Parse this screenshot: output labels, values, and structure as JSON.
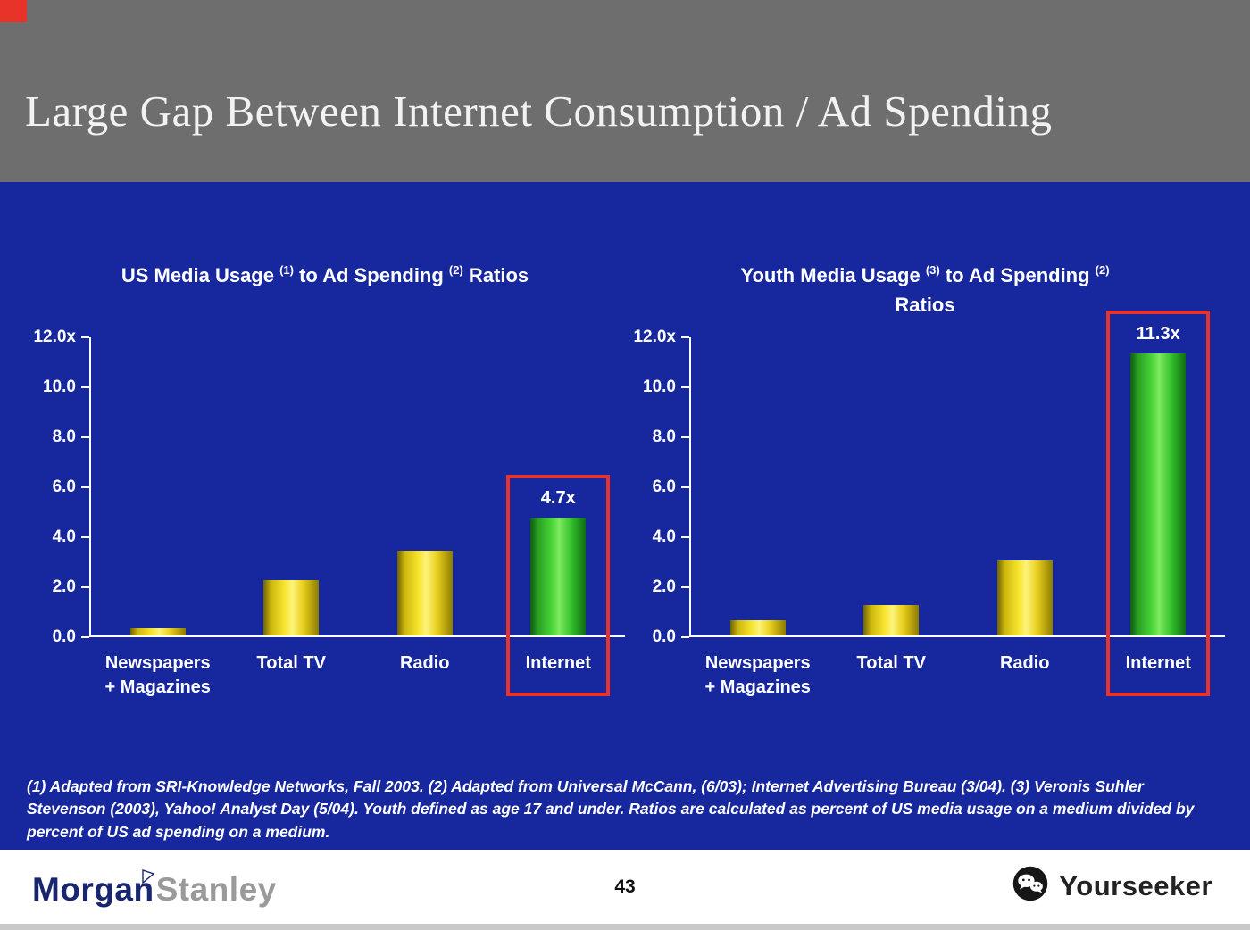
{
  "slide": {
    "title": "Large Gap Between Internet Consumption / Ad Spending",
    "footnote": "(1) Adapted from SRI-Knowledge Networks, Fall 2003.  (2) Adapted from Universal McCann, (6/03); Internet Advertising Bureau (3/04). (3) Veronis Suhler Stevenson (2003), Yahoo! Analyst Day (5/04).  Youth defined as age 17 and under.  Ratios are calculated as percent of US media usage on a medium divided by percent of US ad spending on a medium.",
    "page_number": "43"
  },
  "footer": {
    "logo_morgan": "Morgan",
    "logo_stanley": "Stanley",
    "brand": "Yourseeker"
  },
  "icons": {
    "brand_icon": "wechat-icon",
    "logo_icon": "morgan-stanley-flag-icon"
  },
  "colors": {
    "title_band_gray": "#6e6e6e",
    "slide_blue": "#17289e",
    "bar_yellow": "#f7e42e",
    "bar_green": "#47d437",
    "highlight_red": "#e8332a",
    "text_white": "#ffffff"
  },
  "chart_data": [
    {
      "type": "bar",
      "title": "US Media Usage (1) to Ad Spending (2) Ratios",
      "title_parts": [
        {
          "t": "US Media Usage "
        },
        {
          "t": "(1)",
          "sup": true
        },
        {
          "t": " to Ad Spending "
        },
        {
          "t": "(2)",
          "sup": true
        },
        {
          "t": " Ratios"
        }
      ],
      "categories": [
        "Newspapers\n+ Magazines",
        "Total TV",
        "Radio",
        "Internet"
      ],
      "values": [
        0.3,
        2.2,
        3.4,
        4.7
      ],
      "bar_colors": [
        "yellow",
        "yellow",
        "yellow",
        "green"
      ],
      "ylim": [
        0,
        12
      ],
      "yticks": [
        "12.0x",
        "10.0",
        "8.0",
        "6.0",
        "4.0",
        "2.0",
        "0.0"
      ],
      "grid": false,
      "legend": false,
      "highlight": {
        "index": 3,
        "category": "Internet",
        "label": "4.7x"
      }
    },
    {
      "type": "bar",
      "title": "Youth Media Usage (3) to Ad Spending (2) Ratios",
      "title_parts": [
        {
          "t": "Youth Media Usage "
        },
        {
          "t": "(3)",
          "sup": true
        },
        {
          "t": " to Ad Spending "
        },
        {
          "t": "(2)",
          "sup": true
        },
        {
          "br": true
        },
        {
          "t": "Ratios"
        }
      ],
      "categories": [
        "Newspapers\n+ Magazines",
        "Total TV",
        "Radio",
        "Internet"
      ],
      "values": [
        0.6,
        1.2,
        3.0,
        11.3
      ],
      "bar_colors": [
        "yellow",
        "yellow",
        "yellow",
        "green"
      ],
      "ylim": [
        0,
        12
      ],
      "yticks": [
        "12.0x",
        "10.0",
        "8.0",
        "6.0",
        "4.0",
        "2.0",
        "0.0"
      ],
      "grid": false,
      "legend": false,
      "highlight": {
        "index": 3,
        "category": "Internet",
        "label": "11.3x"
      }
    }
  ]
}
